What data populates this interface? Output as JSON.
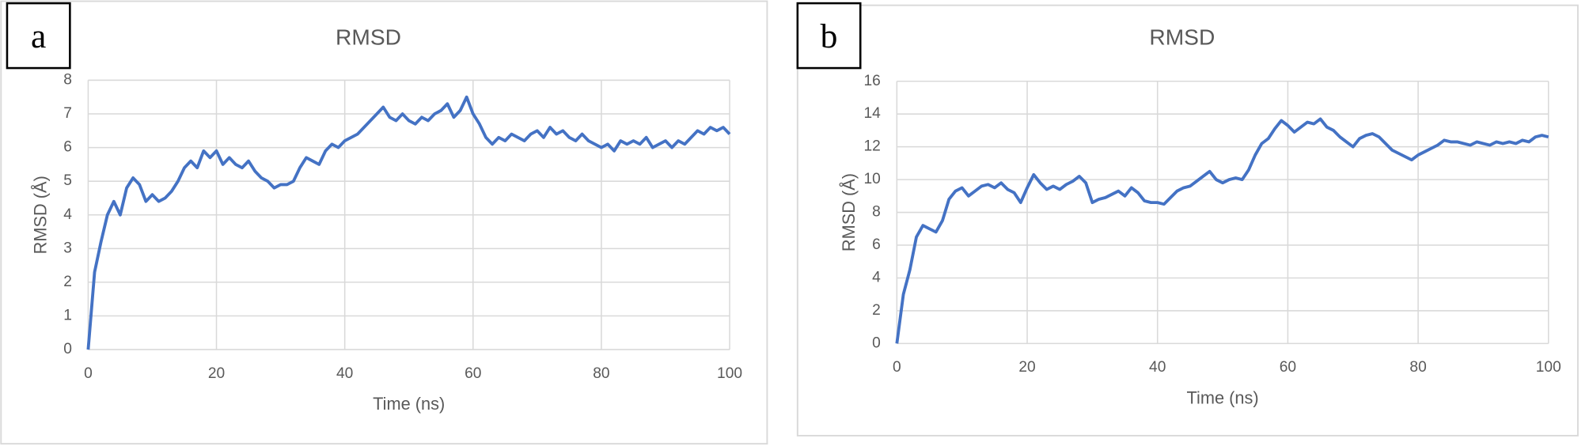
{
  "chart_data": [
    {
      "type": "line",
      "panel": "a",
      "title": "RMSD",
      "x_label": "Time (ns)",
      "y_label": "RMSD (Å)",
      "xlim": [
        0,
        100
      ],
      "xticks": [
        0,
        20,
        40,
        60,
        80,
        100
      ],
      "ylim": [
        0,
        8
      ],
      "yticks": [
        0,
        1,
        2,
        3,
        4,
        5,
        6,
        7,
        8
      ],
      "grid": true,
      "x": [
        0,
        1,
        2,
        3,
        4,
        5,
        6,
        7,
        8,
        9,
        10,
        11,
        12,
        13,
        14,
        15,
        16,
        17,
        18,
        19,
        20,
        21,
        22,
        23,
        24,
        25,
        26,
        27,
        28,
        29,
        30,
        31,
        32,
        33,
        34,
        35,
        36,
        37,
        38,
        39,
        40,
        41,
        42,
        43,
        44,
        45,
        46,
        47,
        48,
        49,
        50,
        51,
        52,
        53,
        54,
        55,
        56,
        57,
        58,
        59,
        60,
        61,
        62,
        63,
        64,
        65,
        66,
        67,
        68,
        69,
        70,
        71,
        72,
        73,
        74,
        75,
        76,
        77,
        78,
        79,
        80,
        81,
        82,
        83,
        84,
        85,
        86,
        87,
        88,
        89,
        90,
        91,
        92,
        93,
        94,
        95,
        96,
        97,
        98,
        99,
        100
      ],
      "series": [
        {
          "name": "RMSD",
          "color": "#4472c4",
          "values": [
            0,
            2.3,
            3.2,
            4.0,
            4.4,
            4.0,
            4.8,
            5.1,
            4.9,
            4.4,
            4.6,
            4.4,
            4.5,
            4.7,
            5.0,
            5.4,
            5.6,
            5.4,
            5.9,
            5.7,
            5.9,
            5.5,
            5.7,
            5.5,
            5.4,
            5.6,
            5.3,
            5.1,
            5.0,
            4.8,
            4.9,
            4.9,
            5.0,
            5.4,
            5.7,
            5.6,
            5.5,
            5.9,
            6.1,
            6.0,
            6.2,
            6.3,
            6.4,
            6.6,
            6.8,
            7.0,
            7.2,
            6.9,
            6.8,
            7.0,
            6.8,
            6.7,
            6.9,
            6.8,
            7.0,
            7.1,
            7.3,
            6.9,
            7.1,
            7.5,
            7.0,
            6.7,
            6.3,
            6.1,
            6.3,
            6.2,
            6.4,
            6.3,
            6.2,
            6.4,
            6.5,
            6.3,
            6.6,
            6.4,
            6.5,
            6.3,
            6.2,
            6.4,
            6.2,
            6.1,
            6.0,
            6.1,
            5.9,
            6.2,
            6.1,
            6.2,
            6.1,
            6.3,
            6.0,
            6.1,
            6.2,
            6.0,
            6.2,
            6.1,
            6.3,
            6.5,
            6.4,
            6.6,
            6.5,
            6.6,
            6.4
          ]
        }
      ]
    },
    {
      "type": "line",
      "panel": "b",
      "title": "RMSD",
      "x_label": "Time (ns)",
      "y_label": "RMSD (Å)",
      "xlim": [
        0,
        100
      ],
      "xticks": [
        0,
        20,
        40,
        60,
        80,
        100
      ],
      "ylim": [
        0,
        16
      ],
      "yticks": [
        0,
        2,
        4,
        6,
        8,
        10,
        12,
        14,
        16
      ],
      "grid": true,
      "x": [
        0,
        1,
        2,
        3,
        4,
        5,
        6,
        7,
        8,
        9,
        10,
        11,
        12,
        13,
        14,
        15,
        16,
        17,
        18,
        19,
        20,
        21,
        22,
        23,
        24,
        25,
        26,
        27,
        28,
        29,
        30,
        31,
        32,
        33,
        34,
        35,
        36,
        37,
        38,
        39,
        40,
        41,
        42,
        43,
        44,
        45,
        46,
        47,
        48,
        49,
        50,
        51,
        52,
        53,
        54,
        55,
        56,
        57,
        58,
        59,
        60,
        61,
        62,
        63,
        64,
        65,
        66,
        67,
        68,
        69,
        70,
        71,
        72,
        73,
        74,
        75,
        76,
        77,
        78,
        79,
        80,
        81,
        82,
        83,
        84,
        85,
        86,
        87,
        88,
        89,
        90,
        91,
        92,
        93,
        94,
        95,
        96,
        97,
        98,
        99,
        100
      ],
      "series": [
        {
          "name": "RMSD",
          "color": "#4472c4",
          "values": [
            0,
            3.0,
            4.5,
            6.5,
            7.2,
            7.0,
            6.8,
            7.5,
            8.8,
            9.3,
            9.5,
            9.0,
            9.3,
            9.6,
            9.7,
            9.5,
            9.8,
            9.4,
            9.2,
            8.6,
            9.5,
            10.3,
            9.8,
            9.4,
            9.6,
            9.4,
            9.7,
            9.9,
            10.2,
            9.8,
            8.6,
            8.8,
            8.9,
            9.1,
            9.3,
            9.0,
            9.5,
            9.2,
            8.7,
            8.6,
            8.6,
            8.5,
            8.9,
            9.3,
            9.5,
            9.6,
            9.9,
            10.2,
            10.5,
            10.0,
            9.8,
            10.0,
            10.1,
            10.0,
            10.6,
            11.5,
            12.2,
            12.5,
            13.1,
            13.6,
            13.3,
            12.9,
            13.2,
            13.5,
            13.4,
            13.7,
            13.2,
            13.0,
            12.6,
            12.3,
            12.0,
            12.5,
            12.7,
            12.8,
            12.6,
            12.2,
            11.8,
            11.6,
            11.4,
            11.2,
            11.5,
            11.7,
            11.9,
            12.1,
            12.4,
            12.3,
            12.3,
            12.2,
            12.1,
            12.3,
            12.2,
            12.1,
            12.3,
            12.2,
            12.3,
            12.2,
            12.4,
            12.3,
            12.6,
            12.7,
            12.6
          ]
        }
      ]
    }
  ]
}
